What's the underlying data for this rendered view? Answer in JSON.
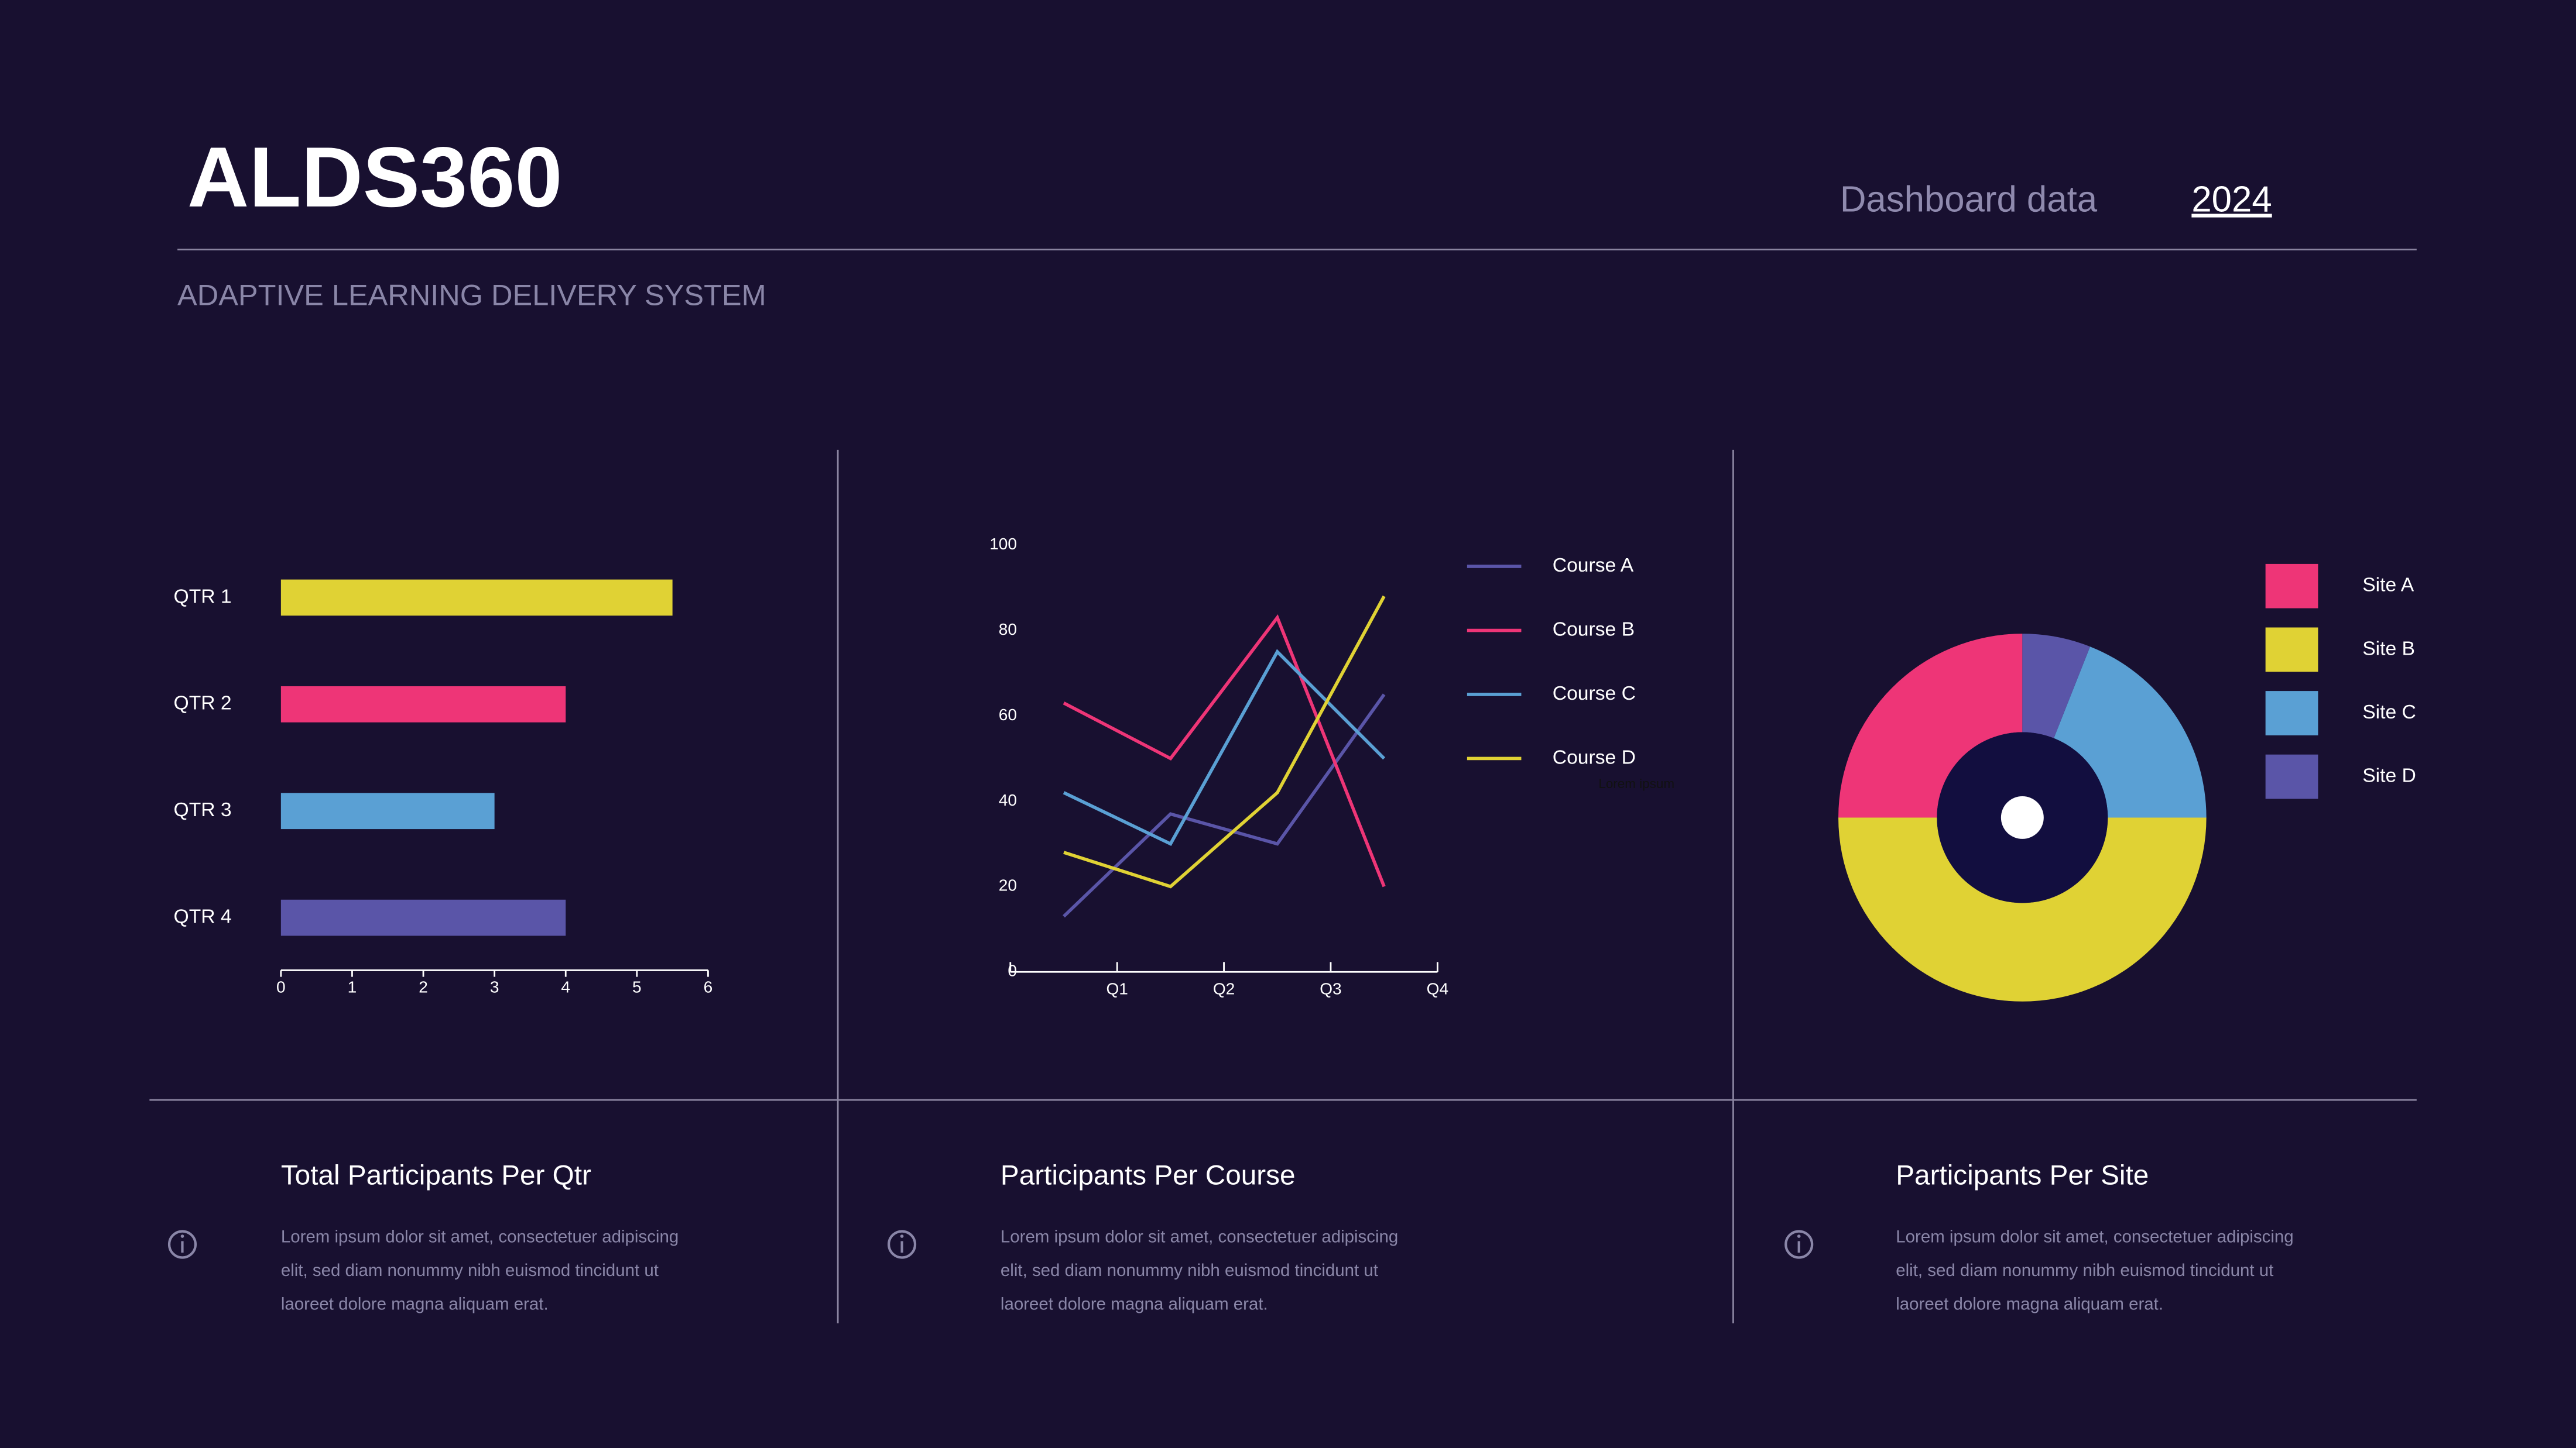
{
  "header": {
    "title": "ALDS360",
    "subtitle": "ADAPTIVE LEARNING DELIVERY SYSTEM",
    "label": "Dashboard data",
    "year": "2024"
  },
  "panels": [
    {
      "title": "Total Participants Per Qtr",
      "text": [
        "Lorem ipsum dolor sit amet, consectetuer adipiscing",
        "elit, sed diam nonummy nibh euismod tincidunt ut",
        "laoreet dolore magna aliquam erat."
      ]
    },
    {
      "title": "Participants Per Course",
      "text": [
        "Lorem ipsum dolor sit amet, consectetuer adipiscing",
        "elit, sed diam nonummy nibh euismod tincidunt ut",
        "laoreet dolore magna aliquam erat."
      ]
    },
    {
      "title": "Participants Per Site",
      "text": [
        "Lorem ipsum dolor sit amet, consectetuer adipiscing",
        "elit, sed diam nonummy nibh euismod tincidunt ut",
        "laoreet dolore magna aliquam erat."
      ]
    }
  ],
  "chart_data": [
    {
      "type": "bar",
      "orientation": "horizontal",
      "categories": [
        "QTR 1",
        "QTR 2",
        "QTR 3",
        "QTR 4"
      ],
      "values": [
        5.5,
        4,
        3,
        4
      ],
      "colors": [
        "#e0d234",
        "#ee3577",
        "#5aa0d4",
        "#5a55a8"
      ],
      "xlim": [
        0,
        6
      ],
      "xticks": [
        0,
        1,
        2,
        3,
        4,
        5,
        6
      ]
    },
    {
      "type": "line",
      "categories": [
        "Q1",
        "Q2",
        "Q3",
        "Q4"
      ],
      "ylim": [
        0,
        100
      ],
      "yticks": [
        0,
        20,
        40,
        60,
        80,
        100
      ],
      "annotation": "Lorem ipsum",
      "series": [
        {
          "name": "Course A",
          "color": "#5a55a8",
          "values": [
            13,
            37,
            30,
            65
          ]
        },
        {
          "name": "Course B",
          "color": "#ee3577",
          "values": [
            63,
            50,
            83,
            20
          ]
        },
        {
          "name": "Course C",
          "color": "#5aa0d4",
          "values": [
            42,
            30,
            75,
            50
          ]
        },
        {
          "name": "Course D",
          "color": "#e0d234",
          "values": [
            28,
            20,
            42,
            88
          ]
        }
      ]
    },
    {
      "type": "pie",
      "donut": true,
      "categories": [
        "Site A",
        "Site B",
        "Site C",
        "Site D"
      ],
      "values": [
        25,
        50,
        19,
        6
      ],
      "colors": [
        "#ee3577",
        "#e0d234",
        "#5aa0d4",
        "#5a55a8"
      ]
    }
  ]
}
